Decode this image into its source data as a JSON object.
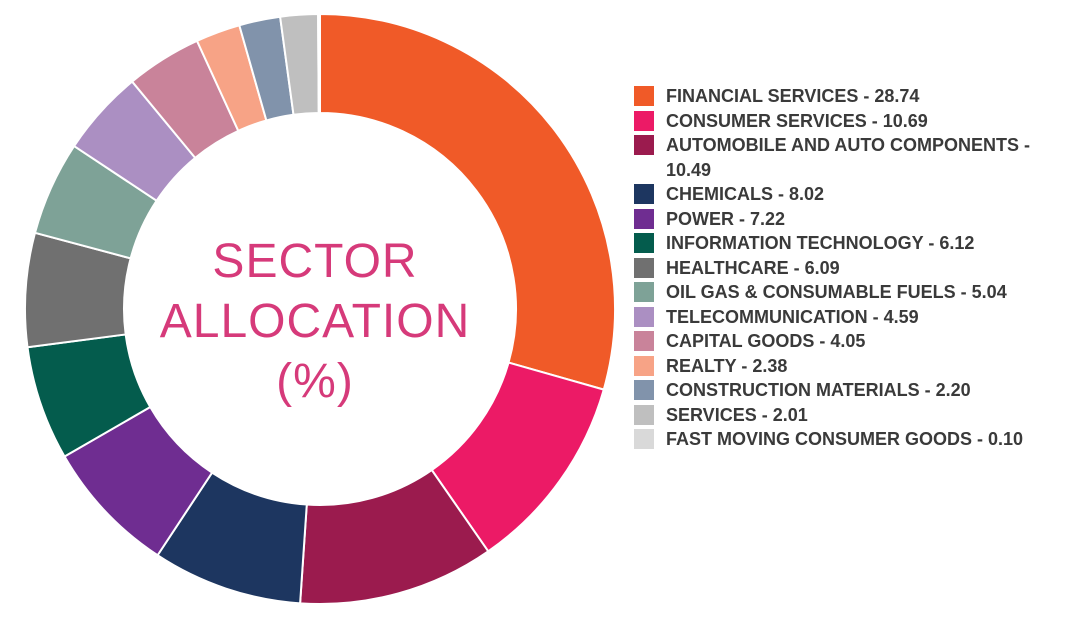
{
  "chart_data": {
    "type": "pie",
    "title": "SECTOR ALLOCATION (%)",
    "title_lines": [
      "SECTOR",
      "ALLOCATION",
      "(%)"
    ],
    "legend_position": "right",
    "slices": [
      {
        "name": "FINANCIAL SERVICES",
        "value": 28.74,
        "value_label": "28.74",
        "label": "FINANCIAL SERVICES - 28.74",
        "color": "#f05a28"
      },
      {
        "name": "CONSUMER SERVICES",
        "value": 10.69,
        "value_label": "10.69",
        "label": "CONSUMER SERVICES - 10.69",
        "color": "#ec1a66"
      },
      {
        "name": "AUTOMOBILE AND AUTO COMPONENTS",
        "value": 10.49,
        "value_label": "10.49",
        "label": "AUTOMOBILE AND AUTO COMPONENTS - 10.49",
        "color": "#9b1b4e"
      },
      {
        "name": "CHEMICALS",
        "value": 8.02,
        "value_label": "8.02",
        "label": "CHEMICALS - 8.02",
        "color": "#1d3660"
      },
      {
        "name": "POWER",
        "value": 7.22,
        "value_label": "7.22",
        "label": "POWER - 7.22",
        "color": "#6f2d91"
      },
      {
        "name": "INFORMATION TECHNOLOGY",
        "value": 6.12,
        "value_label": "6.12",
        "label": "INFORMATION TECHNOLOGY - 6.12",
        "color": "#045c4d"
      },
      {
        "name": "HEALTHCARE",
        "value": 6.09,
        "value_label": "6.09",
        "label": "HEALTHCARE - 6.09",
        "color": "#707070"
      },
      {
        "name": "OIL GAS & CONSUMABLE FUELS",
        "value": 5.04,
        "value_label": "5.04",
        "label": "OIL GAS & CONSUMABLE FUELS - 5.04",
        "color": "#7ea297"
      },
      {
        "name": "TELECOMMUNICATION",
        "value": 4.59,
        "value_label": "4.59",
        "label": "TELECOMMUNICATION - 4.59",
        "color": "#ab8fc2"
      },
      {
        "name": "CAPITAL GOODS",
        "value": 4.05,
        "value_label": "4.05",
        "label": "CAPITAL GOODS - 4.05",
        "color": "#c9839a"
      },
      {
        "name": "REALTY",
        "value": 2.38,
        "value_label": "2.38",
        "label": "REALTY - 2.38",
        "color": "#f7a386"
      },
      {
        "name": "CONSTRUCTION MATERIALS",
        "value": 2.2,
        "value_label": "2.20",
        "label": "CONSTRUCTION MATERIALS - 2.20",
        "color": "#8193ab"
      },
      {
        "name": "SERVICES",
        "value": 2.01,
        "value_label": "2.01",
        "label": "SERVICES - 2.01",
        "color": "#bfbfbf"
      },
      {
        "name": "FAST MOVING CONSUMER GOODS",
        "value": 0.1,
        "value_label": "0.10",
        "label": "FAST MOVING CONSUMER GOODS - 0.10",
        "color": "#d9d9d9"
      }
    ]
  }
}
